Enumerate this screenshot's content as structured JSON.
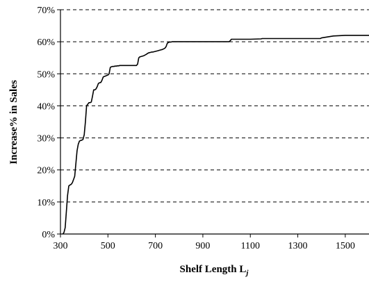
{
  "chart_data": {
    "type": "line",
    "xlabel": "Shelf Length L",
    "xlabel_subscript": "j",
    "ylabel": "Increase% in Sales",
    "xlim": [
      300,
      1600
    ],
    "ylim": [
      0,
      70
    ],
    "x_ticks": [
      300,
      500,
      700,
      900,
      1100,
      1300,
      1500
    ],
    "x_tick_labels": [
      "300",
      "500",
      "700",
      "900",
      "1100",
      "1300",
      "1500"
    ],
    "y_ticks": [
      0,
      10,
      20,
      30,
      40,
      50,
      60,
      70
    ],
    "y_tick_labels": [
      "0%",
      "10%",
      "20%",
      "30%",
      "40%",
      "50%",
      "60%",
      "70%"
    ],
    "grid": "horizontal-dashed",
    "legend": "none",
    "line_color": "#000000",
    "series": [
      {
        "x": [
          310,
          315,
          320,
          325,
          330,
          335,
          340,
          345,
          350,
          355,
          360,
          365,
          370,
          375,
          380,
          385,
          390,
          395,
          400,
          405,
          410,
          415,
          420,
          425,
          430,
          435,
          440,
          445,
          450,
          455,
          460,
          465,
          470,
          475,
          480,
          485,
          490,
          495,
          500,
          505,
          510,
          515,
          520,
          525,
          530,
          535,
          540,
          545,
          550,
          555,
          560,
          565,
          570,
          575,
          580,
          585,
          590,
          600,
          610,
          620,
          625,
          630,
          635,
          640,
          650,
          660,
          670,
          675,
          680,
          685,
          690,
          700,
          710,
          720,
          730,
          740,
          745,
          750,
          755,
          760,
          765,
          770,
          775,
          780,
          800,
          850,
          900,
          950,
          1000,
          1010,
          1015,
          1020,
          1050,
          1100,
          1145,
          1150,
          1200,
          1250,
          1300,
          1350,
          1390,
          1395,
          1400,
          1450,
          1500,
          1550,
          1600
        ],
        "y": [
          0,
          0.5,
          2,
          7,
          12,
          15,
          15.3,
          15.5,
          16,
          17,
          18,
          22,
          26,
          28,
          29,
          29.2,
          29.3,
          29.5,
          31,
          35,
          40,
          40.5,
          41,
          41,
          41.2,
          43,
          45,
          45,
          45.3,
          46,
          47,
          47.2,
          47.3,
          48,
          49,
          49.2,
          49.3,
          49.5,
          49.6,
          50,
          52,
          52.2,
          52.3,
          52.3,
          52.4,
          52.4,
          52.5,
          52.5,
          52.6,
          52.6,
          52.6,
          52.6,
          52.6,
          52.6,
          52.6,
          52.6,
          52.6,
          52.6,
          52.6,
          52.6,
          53,
          55,
          55.3,
          55.4,
          55.6,
          56,
          56.5,
          56.6,
          56.7,
          56.8,
          56.8,
          57,
          57.2,
          57.4,
          57.6,
          58,
          58.5,
          59.5,
          59.8,
          59.9,
          59.9,
          60,
          60,
          60,
          60,
          60,
          60,
          60,
          60,
          60,
          60.3,
          60.8,
          60.8,
          60.8,
          60.9,
          61,
          61,
          61,
          61,
          61,
          61,
          61,
          61.2,
          61.8,
          62,
          62,
          62
        ]
      }
    ]
  }
}
